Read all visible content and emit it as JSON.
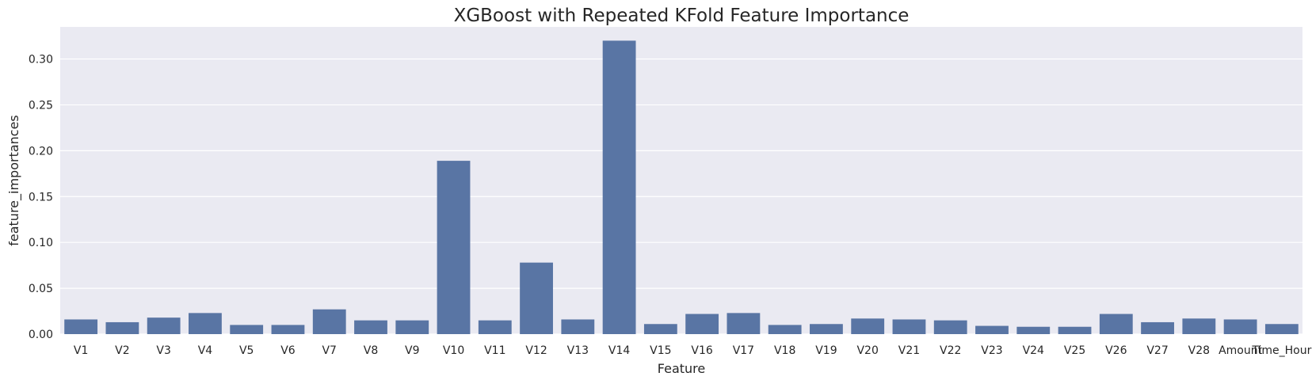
{
  "chart_data": {
    "type": "bar",
    "title": "XGBoost with Repeated KFold Feature Importance",
    "xlabel": "Feature",
    "ylabel": "feature_importances",
    "categories": [
      "V1",
      "V2",
      "V3",
      "V4",
      "V5",
      "V6",
      "V7",
      "V8",
      "V9",
      "V10",
      "V11",
      "V12",
      "V13",
      "V14",
      "V15",
      "V16",
      "V17",
      "V18",
      "V19",
      "V20",
      "V21",
      "V22",
      "V23",
      "V24",
      "V25",
      "V26",
      "V27",
      "V28",
      "Amount",
      "Time_Hour"
    ],
    "values": [
      0.016,
      0.013,
      0.018,
      0.023,
      0.01,
      0.01,
      0.027,
      0.015,
      0.015,
      0.189,
      0.015,
      0.078,
      0.016,
      0.32,
      0.011,
      0.022,
      0.023,
      0.01,
      0.011,
      0.017,
      0.016,
      0.015,
      0.009,
      0.008,
      0.008,
      0.022,
      0.013,
      0.017,
      0.016,
      0.011
    ],
    "ylim": [
      0,
      0.335
    ],
    "yticks": [
      0.0,
      0.05,
      0.1,
      0.15,
      0.2,
      0.25,
      0.3
    ],
    "ytick_labels": [
      "0.00",
      "0.05",
      "0.10",
      "0.15",
      "0.20",
      "0.25",
      "0.30"
    ],
    "grid": true,
    "colors": {
      "bar": "#5975a4",
      "background": "#eaeaf2",
      "grid": "#ffffff",
      "text": "#262626"
    }
  }
}
